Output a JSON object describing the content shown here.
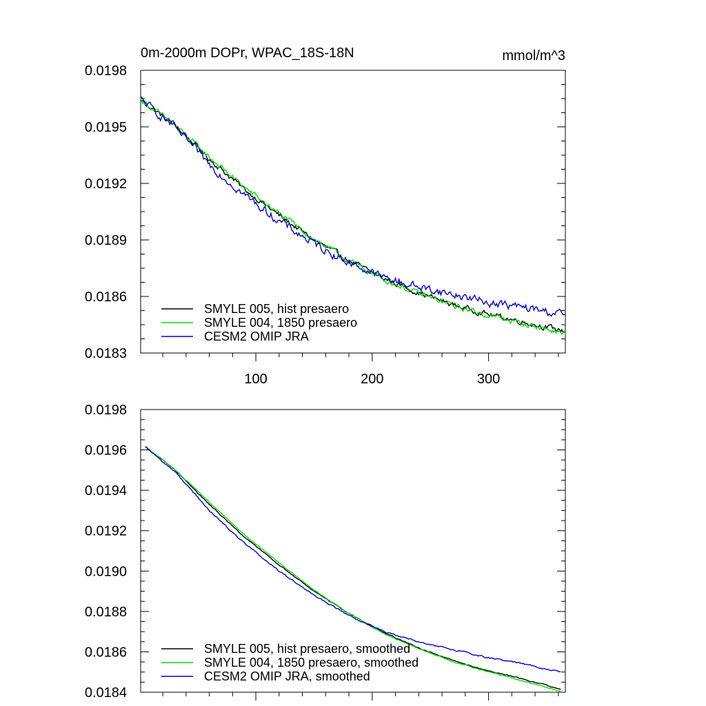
{
  "chart_data": [
    {
      "type": "line",
      "title_left": "0m-2000m DOPr, WPAC_18S-18N",
      "title_right": "mmol/m^3",
      "xlim": [
        1,
        366
      ],
      "ylim": [
        0.0183,
        0.0198
      ],
      "yticks": [
        0.0183,
        0.0186,
        0.0189,
        0.0192,
        0.0195,
        0.0198
      ],
      "ytick_labels": [
        "0.0183",
        "0.0186",
        "0.0189",
        "0.0192",
        "0.0195",
        "0.0198"
      ],
      "xticks": [
        100,
        200,
        300
      ],
      "xtick_labels": [
        "100",
        "200",
        "300"
      ],
      "legend_position": "bottom-left",
      "series": [
        {
          "name": "SMYLE 005, hist presaero",
          "color": "#000000",
          "noise": 1.2e-05,
          "x": [
            1,
            30,
            60,
            90,
            120,
            150,
            180,
            210,
            240,
            270,
            300,
            330,
            366
          ],
          "y": [
            0.019645,
            0.01951,
            0.01933,
            0.01917,
            0.01903,
            0.0189,
            0.01879,
            0.018695,
            0.01862,
            0.018555,
            0.018505,
            0.018465,
            0.018415
          ]
        },
        {
          "name": "SMYLE 004, 1850 presaero",
          "color": "#00dd00",
          "noise": 1.2e-05,
          "x": [
            1,
            30,
            60,
            90,
            120,
            150,
            180,
            210,
            240,
            270,
            300,
            330,
            366
          ],
          "y": [
            0.019645,
            0.01951,
            0.01934,
            0.01918,
            0.01904,
            0.018905,
            0.01879,
            0.01869,
            0.018615,
            0.01855,
            0.0185,
            0.018455,
            0.018405
          ]
        },
        {
          "name": "CESM2 OMIP JRA",
          "color": "#0000cc",
          "noise": 1.8e-05,
          "x": [
            1,
            30,
            60,
            90,
            120,
            150,
            180,
            210,
            240,
            270,
            300,
            330,
            366
          ],
          "y": [
            0.019645,
            0.0195,
            0.0193,
            0.01914,
            0.019,
            0.01888,
            0.01878,
            0.0187,
            0.01865,
            0.01861,
            0.01857,
            0.01854,
            0.018505
          ]
        }
      ]
    },
    {
      "type": "line",
      "xlim": [
        1,
        366
      ],
      "ylim": [
        0.0184,
        0.0198
      ],
      "yticks": [
        0.0184,
        0.0186,
        0.0188,
        0.019,
        0.0192,
        0.0194,
        0.0196,
        0.0198
      ],
      "ytick_labels": [
        "0.0184",
        "0.0186",
        "0.0188",
        "0.0190",
        "0.0192",
        "0.0194",
        "0.0196",
        "0.0198"
      ],
      "xticks": [
        100,
        200,
        300
      ],
      "legend_position": "bottom-left",
      "series": [
        {
          "name": "SMYLE 005, hist presaero, smoothed",
          "color": "#000000",
          "noise": 2e-06,
          "x": [
            5,
            30,
            60,
            90,
            120,
            150,
            180,
            210,
            240,
            270,
            300,
            330,
            362
          ],
          "y": [
            0.019615,
            0.019505,
            0.01933,
            0.01917,
            0.01903,
            0.0189,
            0.01879,
            0.018695,
            0.01862,
            0.018555,
            0.018505,
            0.018465,
            0.018415
          ]
        },
        {
          "name": "SMYLE 004, 1850 presaero, smoothed",
          "color": "#00dd00",
          "noise": 2e-06,
          "x": [
            5,
            30,
            60,
            90,
            120,
            150,
            180,
            210,
            240,
            270,
            300,
            330,
            362
          ],
          "y": [
            0.019615,
            0.019505,
            0.01934,
            0.01918,
            0.01904,
            0.018905,
            0.01879,
            0.01869,
            0.018615,
            0.01855,
            0.0185,
            0.018455,
            0.018405
          ]
        },
        {
          "name": "CESM2 OMIP JRA, smoothed",
          "color": "#0000cc",
          "noise": 3e-06,
          "x": [
            5,
            30,
            60,
            90,
            120,
            150,
            180,
            210,
            240,
            270,
            300,
            330,
            362
          ],
          "y": [
            0.019615,
            0.019495,
            0.0193,
            0.01914,
            0.019,
            0.01888,
            0.01878,
            0.0187,
            0.01865,
            0.01861,
            0.01857,
            0.01854,
            0.0185
          ]
        }
      ]
    }
  ]
}
